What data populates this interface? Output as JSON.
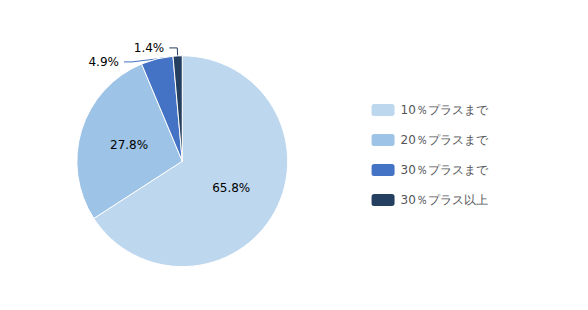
{
  "chart_data": {
    "type": "pie",
    "categories": [
      "10％プラスまで",
      "20％プラスまで",
      "30％プラスまで",
      "30％プラス以上"
    ],
    "values": [
      65.8,
      27.8,
      4.9,
      1.4
    ],
    "value_labels": [
      "65.8%",
      "27.8%",
      "4.9%",
      "1.4%"
    ],
    "colors": [
      "#bdd7ee",
      "#9dc3e6",
      "#4472c4",
      "#243f60"
    ],
    "data_labels": true,
    "legend": "right"
  }
}
